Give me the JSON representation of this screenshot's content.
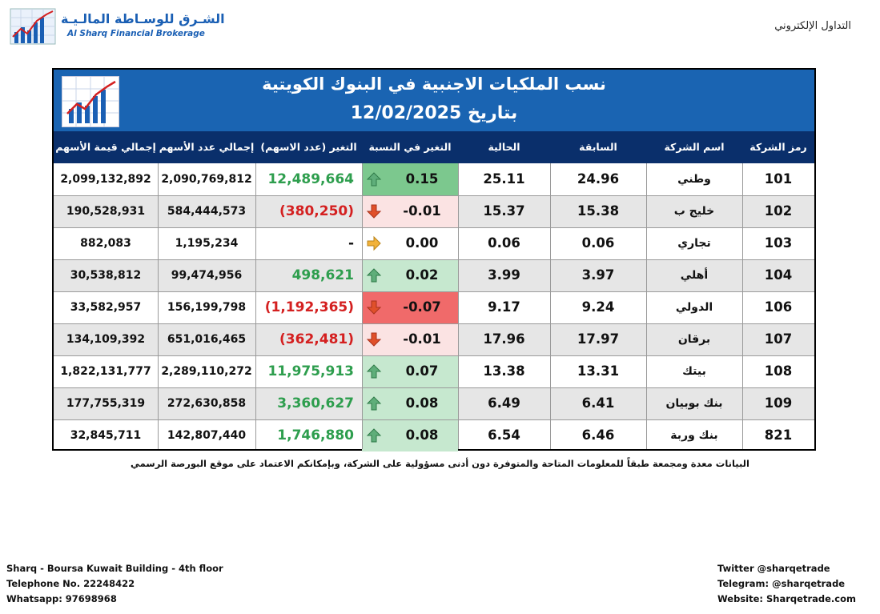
{
  "logo": {
    "arabic": "الشـرق للوسـاطة المالـيـة",
    "english": "Al Sharq Financial Brokerage"
  },
  "header_right": "التداول الإلكتروني",
  "report": {
    "title": "نسب الملكيات الاجنبية في البنوك الكويتية",
    "date_line": "بتاريخ 12/02/2025"
  },
  "columns": {
    "code": "رمز الشركة",
    "name": "اسم الشركة",
    "previous": "السابقة",
    "current": "الحالية",
    "change_pct": "التغير في النسبة",
    "change_shares": "التغير (عدد الاسهم)",
    "total_shares": "إجمالي عدد الأسهم",
    "total_value": "إجمالي قيمة الأسهم"
  },
  "colors": {
    "banner": "#1a64b2",
    "header": "#0a2f6b",
    "up_fill": "#7cc88e",
    "down_fill": "#f06a6a",
    "pos_text": "#2e9e4e",
    "neg_text": "#d42020"
  },
  "rows": [
    {
      "code": "101",
      "name": "وطني",
      "previous": "24.96",
      "current": "25.11",
      "change_pct": "0.15",
      "direction": "up",
      "pct_fill": "strong-up",
      "change_shares": "12,489,664",
      "shares_style": "pos",
      "total_shares": "2,090,769,812",
      "total_value": "2,099,132,892"
    },
    {
      "code": "102",
      "name": "خليج ب",
      "previous": "15.38",
      "current": "15.37",
      "change_pct": "-0.01",
      "direction": "down",
      "pct_fill": "light-down",
      "change_shares": "(380,250)",
      "shares_style": "neg",
      "total_shares": "584,444,573",
      "total_value": "190,528,931"
    },
    {
      "code": "103",
      "name": "تجاري",
      "previous": "0.06",
      "current": "0.06",
      "change_pct": "0.00",
      "direction": "flat",
      "pct_fill": "none",
      "change_shares": "-",
      "shares_style": "neutral",
      "total_shares": "1,195,234",
      "total_value": "882,083"
    },
    {
      "code": "104",
      "name": "أهلي",
      "previous": "3.97",
      "current": "3.99",
      "change_pct": "0.02",
      "direction": "up",
      "pct_fill": "light-up",
      "change_shares": "498,621",
      "shares_style": "pos",
      "total_shares": "99,474,956",
      "total_value": "30,538,812"
    },
    {
      "code": "106",
      "name": "الدولي",
      "previous": "9.24",
      "current": "9.17",
      "change_pct": "-0.07",
      "direction": "down",
      "pct_fill": "strong-down",
      "change_shares": "(1,192,365)",
      "shares_style": "neg",
      "total_shares": "156,199,798",
      "total_value": "33,582,957"
    },
    {
      "code": "107",
      "name": "برقان",
      "previous": "17.97",
      "current": "17.96",
      "change_pct": "-0.01",
      "direction": "down",
      "pct_fill": "light-down",
      "change_shares": "(362,481)",
      "shares_style": "neg",
      "total_shares": "651,016,465",
      "total_value": "134,109,392"
    },
    {
      "code": "108",
      "name": "بيتك",
      "previous": "13.31",
      "current": "13.38",
      "change_pct": "0.07",
      "direction": "up",
      "pct_fill": "light-up",
      "change_shares": "11,975,913",
      "shares_style": "pos",
      "total_shares": "2,289,110,272",
      "total_value": "1,822,131,777"
    },
    {
      "code": "109",
      "name": "بنك بوبيان",
      "previous": "6.41",
      "current": "6.49",
      "change_pct": "0.08",
      "direction": "up",
      "pct_fill": "light-up",
      "change_shares": "3,360,627",
      "shares_style": "pos",
      "total_shares": "272,630,858",
      "total_value": "177,755,319"
    },
    {
      "code": "821",
      "name": "بنك وربة",
      "previous": "6.46",
      "current": "6.54",
      "change_pct": "0.08",
      "direction": "up",
      "pct_fill": "light-up",
      "change_shares": "1,746,880",
      "shares_style": "pos",
      "total_shares": "142,807,440",
      "total_value": "32,845,711"
    }
  ],
  "disclaimer": "البيانات معدة ومجمعة طبقاً للمعلومات المتاحة والمتوفرة دون أدنى مسؤولية على الشركة، وبإمكانكم الاعتماد على موقع البورصة الرسمي",
  "footer_left": [
    "Sharq - Boursa Kuwait Building - 4th floor",
    "Telephone No. 22248422",
    "Whatsapp: 97698968"
  ],
  "footer_right": [
    "Twitter @sharqetrade",
    "Telegram: @sharqetrade",
    "Website: Sharqetrade.com"
  ]
}
